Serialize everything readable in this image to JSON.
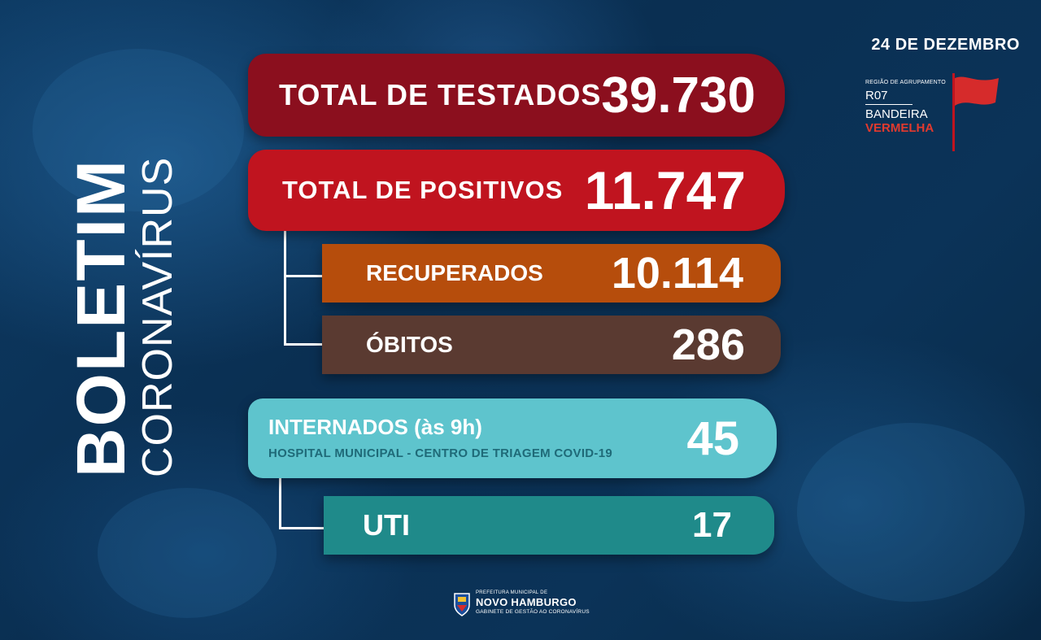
{
  "side_title": {
    "line1": "BOLETIM",
    "line2": "CORONAVÍRUS"
  },
  "date": "24 DE DEZEMBRO",
  "region": {
    "small_label": "REGIÃO DE AGRUPAMENTO",
    "code": "R07",
    "flag_label": "BANDEIRA",
    "flag_color_label": "VERMELHA",
    "flag_color": "#d62b2b"
  },
  "stats": {
    "testados": {
      "label": "TOTAL DE TESTADOS",
      "value": "39.730",
      "color": "#8b0f1e"
    },
    "positivos": {
      "label": "TOTAL DE POSITIVOS",
      "value": "11.747",
      "color": "#c0141f"
    },
    "recuperados": {
      "label": "RECUPERADOS",
      "value": "10.114",
      "color": "#b64d0c"
    },
    "obitos": {
      "label": "ÓBITOS",
      "value": "286",
      "color": "#5a3a31"
    },
    "internados": {
      "label": "INTERNADOS (às 9h)",
      "sublabel": "HOSPITAL MUNICIPAL - CENTRO DE TRIAGEM COVID-19",
      "value": "45",
      "color": "#5ec4cd"
    },
    "uti": {
      "label": "UTI",
      "value": "17",
      "color": "#1f8a8a"
    }
  },
  "footer": {
    "prefeitura": "PREFEITURA MUNICIPAL DE",
    "city": "NOVO HAMBURGO",
    "gabinete": "GABINETE DE GESTÃO AO CORONAVÍRUS",
    "logo_icon": "city-crest-icon"
  }
}
